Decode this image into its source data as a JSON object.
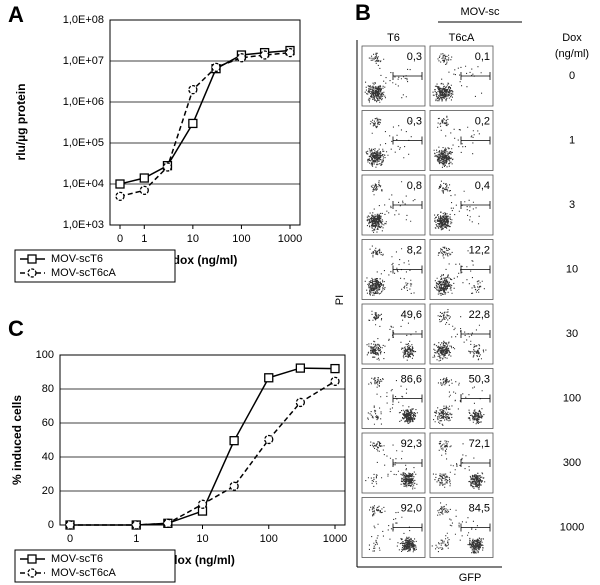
{
  "chart_data": [
    {
      "type": "line",
      "panel": "A",
      "y_label": "rlu/µg protein",
      "x_label": "dox (ng/ml)",
      "x": [
        0,
        1,
        3,
        10,
        30,
        100,
        300,
        1000
      ],
      "xscale": "log",
      "yscale": "log",
      "xlim": [
        0,
        1000
      ],
      "xticks": [
        0,
        1,
        10,
        100,
        1000
      ],
      "ylim": [
        1000,
        100000000
      ],
      "yticks": [
        {
          "value": 1000,
          "label": "1,0E+03"
        },
        {
          "value": 10000,
          "label": "1,0E+04"
        },
        {
          "value": 100000,
          "label": "1,0E+05"
        },
        {
          "value": 1000000,
          "label": "1,0E+06"
        },
        {
          "value": 10000000,
          "label": "1,0E+07"
        },
        {
          "value": 100000000,
          "label": "1,0E+08"
        }
      ],
      "grid": true,
      "series": [
        {
          "name": "MOV-scT6",
          "color": "#000000",
          "marker": "square",
          "line_style": "solid",
          "values": [
            10000,
            14000,
            28000,
            300000,
            6500000,
            14000000,
            16000000,
            18000000
          ]
        },
        {
          "name": "MOV-scT6cA",
          "color": "#000000",
          "marker": "circle",
          "line_style": "dashed",
          "values": [
            5000,
            7000,
            26000,
            2000000,
            7000000,
            12000000,
            14000000,
            16000000
          ]
        }
      ]
    },
    {
      "type": "facs",
      "panel": "B",
      "title": "MOV-sc",
      "category_label": [
        "Dox",
        "(ng/ml)"
      ],
      "x_label": "GFP",
      "y_label": "PI",
      "categories": [
        "0",
        "1",
        "3",
        "10",
        "30",
        "100",
        "300",
        "1000"
      ],
      "series": [
        {
          "name": "T6",
          "values": [
            0.3,
            0.3,
            0.8,
            8.2,
            49.6,
            86.6,
            92.3,
            92.0
          ],
          "value_labels": [
            "0,3",
            "0,3",
            "0,8",
            "8,2",
            "49,6",
            "86,6",
            "92,3",
            "92,0"
          ]
        },
        {
          "name": "T6cA",
          "values": [
            0.1,
            0.2,
            0.4,
            12.2,
            22.8,
            50.3,
            72.1,
            84.5
          ],
          "value_labels": [
            "0,1",
            "0,2",
            "0,4",
            "12,2",
            "22,8",
            "50,3",
            "72,1",
            "84,5"
          ]
        }
      ]
    },
    {
      "type": "line",
      "panel": "C",
      "y_label": "% induced cells",
      "x_label": "dox (ng/ml)",
      "x": [
        0,
        1,
        3,
        10,
        30,
        100,
        300,
        1000
      ],
      "xscale": "log",
      "yscale": "linear",
      "xlim": [
        0,
        1000
      ],
      "xticks": [
        0,
        1,
        10,
        100,
        1000
      ],
      "ylim": [
        0,
        100
      ],
      "yticks": [
        0,
        20,
        40,
        60,
        80,
        100
      ],
      "grid": true,
      "series": [
        {
          "name": "MOV-scT6",
          "color": "#000000",
          "marker": "square",
          "line_style": "solid",
          "values": [
            0,
            0,
            1,
            8.2,
            49.6,
            86.6,
            92.3,
            92.0
          ]
        },
        {
          "name": "MOV-scT6cA",
          "color": "#000000",
          "marker": "circle",
          "line_style": "dashed",
          "values": [
            0,
            0,
            1,
            12.2,
            22.8,
            50.3,
            72.1,
            84.5
          ]
        }
      ]
    }
  ]
}
